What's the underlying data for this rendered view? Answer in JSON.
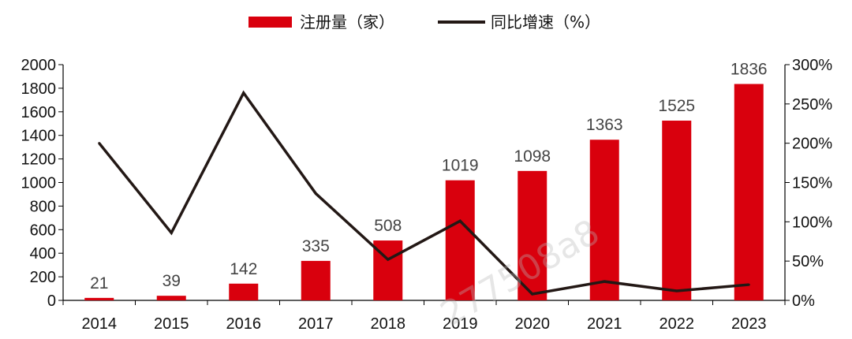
{
  "chart_data": {
    "type": "bar+line",
    "categories": [
      "2014",
      "2015",
      "2016",
      "2017",
      "2018",
      "2019",
      "2020",
      "2021",
      "2022",
      "2023"
    ],
    "series": [
      {
        "name": "注册量（家）",
        "type": "bar",
        "axis": "left",
        "color": "#d9000d",
        "values": [
          21,
          39,
          142,
          335,
          508,
          1019,
          1098,
          1363,
          1525,
          1836
        ]
      },
      {
        "name": "同比增速（%）",
        "type": "line",
        "axis": "right",
        "color": "#231815",
        "values": [
          200,
          86,
          264,
          136,
          52,
          101,
          8,
          24,
          12,
          20
        ]
      }
    ],
    "y_left": {
      "lim": [
        0,
        2000
      ],
      "ticks": [
        0,
        200,
        400,
        600,
        800,
        1000,
        1200,
        1400,
        1600,
        1800,
        2000
      ]
    },
    "y_right": {
      "lim": [
        0,
        300
      ],
      "ticks": [
        "0%",
        "50%",
        "100%",
        "150%",
        "200%",
        "250%",
        "300%"
      ]
    },
    "legend": "top-center",
    "grid": false,
    "watermark": "277508a8"
  }
}
